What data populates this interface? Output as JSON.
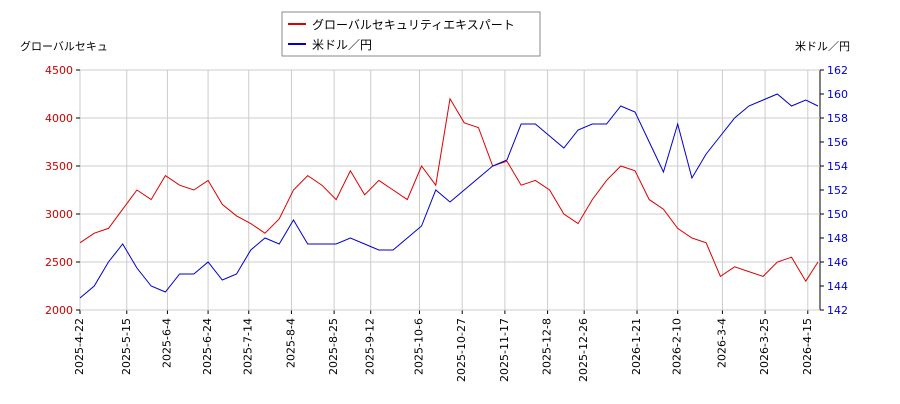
{
  "chart_data": {
    "type": "line",
    "legend": [
      "グローバルセキュリティエキスパート",
      "米ドル／円"
    ],
    "ylabel": "グローバルセキュ",
    "y2label": "米ドル／円",
    "x": [
      "2025-4-22",
      "2025-4-29",
      "2025-5-6",
      "2025-5-13",
      "2025-5-20",
      "2025-5-27",
      "2025-6-3",
      "2025-6-10",
      "2025-6-17",
      "2025-6-24",
      "2025-7-1",
      "2025-7-8",
      "2025-7-15",
      "2025-7-22",
      "2025-7-29",
      "2025-8-5",
      "2025-8-12",
      "2025-8-19",
      "2025-8-26",
      "2025-9-2",
      "2025-9-9",
      "2025-9-16",
      "2025-9-23",
      "2025-9-30",
      "2025-10-7",
      "2025-10-14",
      "2025-10-21",
      "2025-10-28",
      "2025-11-4",
      "2025-11-11",
      "2025-11-18",
      "2025-11-25",
      "2025-12-2",
      "2025-12-9",
      "2025-12-16",
      "2025-12-23",
      "2025-12-30",
      "2026-1-6",
      "2026-1-13",
      "2026-1-20",
      "2026-1-27",
      "2026-2-3",
      "2026-2-10",
      "2026-2-17",
      "2026-2-24",
      "2026-3-3",
      "2026-3-10",
      "2026-3-17",
      "2026-3-24",
      "2026-3-31",
      "2026-4-7",
      "2026-4-14",
      "2026-4-20"
    ],
    "series": [
      {
        "name": "グローバルセキュリティエキスパート",
        "color": "#dd0000",
        "axis": "y",
        "values": [
          2700,
          2800,
          2850,
          3050,
          3250,
          3150,
          3400,
          3300,
          3250,
          3350,
          3100,
          2980,
          2900,
          2800,
          2950,
          3250,
          3400,
          3300,
          3150,
          3450,
          3200,
          3350,
          3250,
          3150,
          3500,
          3300,
          4200,
          3950,
          3900,
          3500,
          3550,
          3300,
          3350,
          3250,
          3000,
          2900,
          3150,
          3350,
          3500,
          3450,
          3150,
          3050,
          2850,
          2750,
          2700,
          2350,
          2450,
          2400,
          2350,
          2500,
          2550,
          2300,
          2500
        ]
      },
      {
        "name": "米ドル／円",
        "color": "#0000cc",
        "axis": "y2",
        "values": [
          143,
          144,
          146,
          147.5,
          145.5,
          144,
          143.5,
          145,
          145,
          146,
          144.5,
          145,
          147,
          148,
          147.5,
          149.5,
          147.5,
          147.5,
          147.5,
          148,
          147.5,
          147,
          147,
          148,
          149,
          152,
          151,
          152,
          153,
          154,
          154.5,
          157.5,
          157.5,
          156.5,
          155.5,
          157,
          157.5,
          157.5,
          159,
          158.5,
          156,
          153.5,
          157.5,
          153,
          155,
          156.5,
          158,
          159,
          159.5,
          160,
          159,
          159.5,
          159
        ]
      }
    ],
    "xlim": [
      "2025-4-22",
      "2026-4-21"
    ],
    "xticks": [
      "2025-4-22",
      "2025-5-15",
      "2025-6-4",
      "2025-6-24",
      "2025-7-14",
      "2025-8-4",
      "2025-8-25",
      "2025-9-12",
      "2025-10-6",
      "2025-10-27",
      "2025-11-17",
      "2025-12-8",
      "2025-12-26",
      "2026-1-21",
      "2026-2-10",
      "2026-3-4",
      "2026-3-25",
      "2026-4-15"
    ],
    "ylim": [
      2000,
      4500
    ],
    "yticks": [
      2000,
      2500,
      3000,
      3500,
      4000,
      4500
    ],
    "y2lim": [
      142,
      162
    ],
    "y2ticks": [
      142,
      144,
      146,
      148,
      150,
      152,
      154,
      156,
      158,
      160,
      162
    ],
    "grid": true
  }
}
